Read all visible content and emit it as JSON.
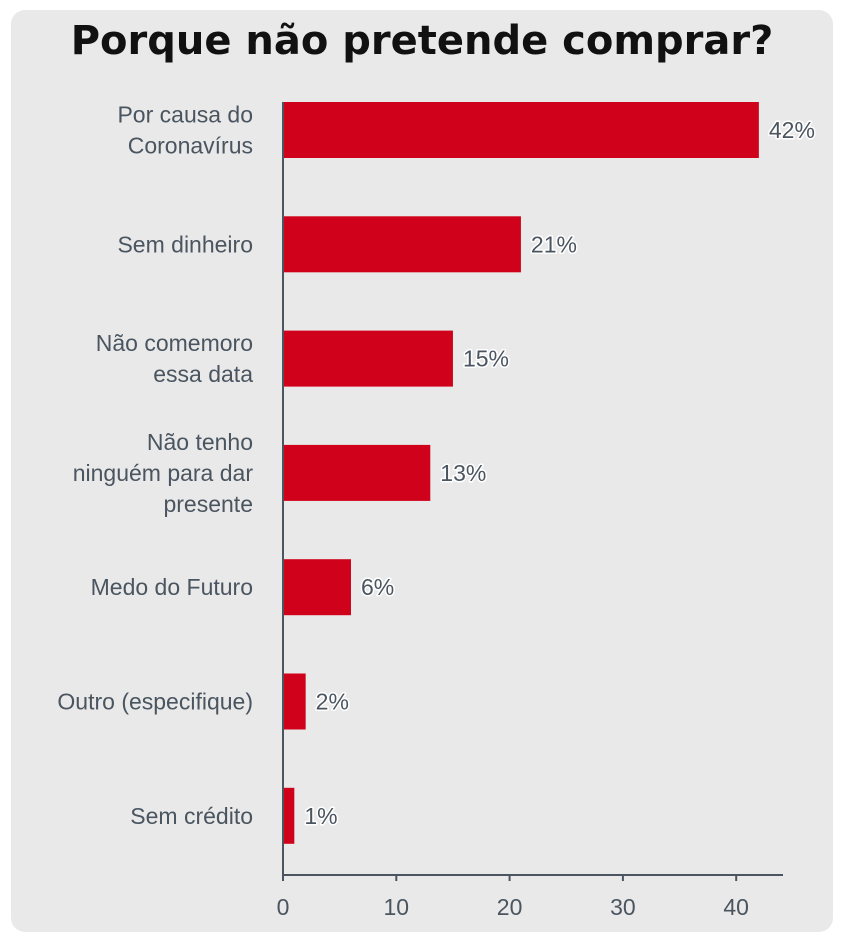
{
  "chart_data": {
    "type": "bar",
    "orientation": "horizontal",
    "title": "Porque não pretende comprar?",
    "xlabel": "",
    "ylabel": "",
    "categories": [
      [
        "Por causa do",
        "Coronavírus"
      ],
      [
        "Sem dinheiro"
      ],
      [
        "Não comemoro",
        "essa data"
      ],
      [
        "Não tenho",
        "ninguém para dar",
        "presente"
      ],
      [
        "Medo do Futuro"
      ],
      [
        "Outro (especifique)"
      ],
      [
        "Sem crédito"
      ]
    ],
    "values": [
      42,
      21,
      15,
      13,
      6,
      2,
      1
    ],
    "data_labels": [
      "42%",
      "21%",
      "15%",
      "13%",
      "6%",
      "2%",
      "1%"
    ],
    "xlim": [
      0,
      44
    ],
    "xticks": [
      0,
      10,
      20,
      30,
      40
    ],
    "bar_color": "#d0021b",
    "grid": false,
    "legend": "none"
  }
}
